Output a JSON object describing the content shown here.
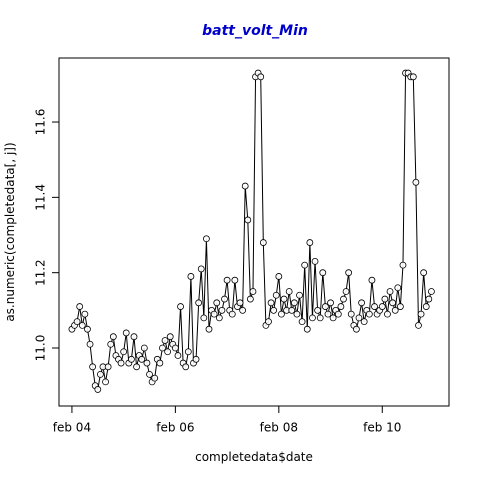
{
  "chart_data": {
    "type": "line",
    "title": "batt_volt_Min",
    "title_color": "#0000cc",
    "xlabel": "completedata$date",
    "ylabel": "as.numeric(completedata[, j])",
    "xlim": [
      3.75,
      11.29
    ],
    "ylim": [
      10.846,
      11.77
    ],
    "xticks": [
      {
        "value": 4,
        "label": "feb 04"
      },
      {
        "value": 6,
        "label": "feb 06"
      },
      {
        "value": 8,
        "label": "feb 08"
      },
      {
        "value": 10,
        "label": "feb 10"
      }
    ],
    "yticks": [
      {
        "value": 11,
        "label": "11.0"
      },
      11.2,
      11.4,
      11.6
    ],
    "x": [
      4.0,
      4.05,
      4.1,
      4.15,
      4.2,
      4.25,
      4.3,
      4.35,
      4.4,
      4.45,
      4.5,
      4.55,
      4.6,
      4.65,
      4.7,
      4.75,
      4.8,
      4.85,
      4.9,
      4.95,
      5.0,
      5.05,
      5.1,
      5.15,
      5.2,
      5.25,
      5.3,
      5.35,
      5.4,
      5.45,
      5.5,
      5.55,
      5.6,
      5.65,
      5.7,
      5.75,
      5.8,
      5.85,
      5.9,
      5.95,
      6.0,
      6.05,
      6.1,
      6.15,
      6.2,
      6.25,
      6.3,
      6.35,
      6.4,
      6.45,
      6.5,
      6.55,
      6.6,
      6.65,
      6.7,
      6.75,
      6.8,
      6.85,
      6.9,
      6.95,
      7.0,
      7.05,
      7.1,
      7.15,
      7.2,
      7.25,
      7.3,
      7.35,
      7.4,
      7.45,
      7.5,
      7.55,
      7.6,
      7.65,
      7.7,
      7.75,
      7.8,
      7.85,
      7.9,
      7.95,
      8.0,
      8.05,
      8.1,
      8.15,
      8.2,
      8.25,
      8.3,
      8.35,
      8.4,
      8.45,
      8.5,
      8.55,
      8.6,
      8.65,
      8.7,
      8.75,
      8.8,
      8.85,
      8.9,
      8.95,
      9.0,
      9.05,
      9.1,
      9.15,
      9.2,
      9.25,
      9.3,
      9.35,
      9.4,
      9.45,
      9.5,
      9.55,
      9.6,
      9.65,
      9.7,
      9.75,
      9.8,
      9.85,
      9.9,
      9.95,
      10.0,
      10.05,
      10.1,
      10.15,
      10.2,
      10.25,
      10.3,
      10.35,
      10.4,
      10.45,
      10.5,
      10.55,
      10.6,
      10.65,
      10.7,
      10.75,
      10.8,
      10.85,
      10.9,
      10.95
    ],
    "series": [
      {
        "color": "#000000",
        "values": [
          11.05,
          11.06,
          11.07,
          11.11,
          11.06,
          11.09,
          11.05,
          11.01,
          10.95,
          10.9,
          10.89,
          10.93,
          10.95,
          10.91,
          10.95,
          11.01,
          11.03,
          10.98,
          10.97,
          10.96,
          10.99,
          11.04,
          10.96,
          10.97,
          11.03,
          10.95,
          10.98,
          10.97,
          11.0,
          10.96,
          10.93,
          10.91,
          10.92,
          10.97,
          10.96,
          11.0,
          11.02,
          10.99,
          11.03,
          11.01,
          11.0,
          10.98,
          11.11,
          10.96,
          10.95,
          10.99,
          11.19,
          10.96,
          10.97,
          11.12,
          11.21,
          11.08,
          11.29,
          11.05,
          11.1,
          11.09,
          11.12,
          11.08,
          11.1,
          11.13,
          11.18,
          11.1,
          11.09,
          11.18,
          11.11,
          11.12,
          11.1,
          11.43,
          11.34,
          11.13,
          11.15,
          11.72,
          11.73,
          11.72,
          11.28,
          11.06,
          11.07,
          11.12,
          11.1,
          11.14,
          11.19,
          11.09,
          11.13,
          11.1,
          11.15,
          11.1,
          11.12,
          11.09,
          11.14,
          11.07,
          11.22,
          11.05,
          11.28,
          11.08,
          11.23,
          11.1,
          11.08,
          11.2,
          11.11,
          11.09,
          11.12,
          11.08,
          11.1,
          11.09,
          11.11,
          11.13,
          11.15,
          11.2,
          11.09,
          11.06,
          11.05,
          11.08,
          11.12,
          11.07,
          11.1,
          11.09,
          11.18,
          11.11,
          11.09,
          11.1,
          11.11,
          11.13,
          11.09,
          11.15,
          11.12,
          11.1,
          11.16,
          11.11,
          11.22,
          11.73,
          11.73,
          11.72,
          11.72,
          11.44,
          11.06,
          11.09,
          11.2,
          11.11,
          11.13,
          11.15
        ]
      }
    ]
  }
}
